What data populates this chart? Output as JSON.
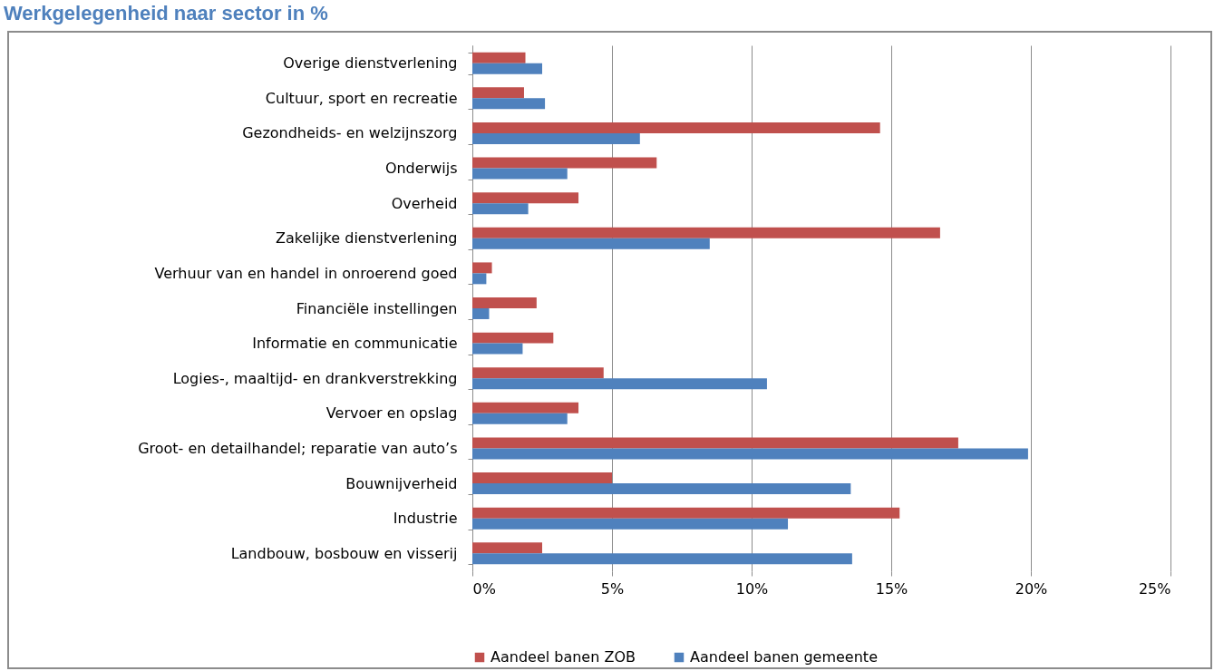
{
  "chart_data": {
    "type": "bar",
    "orientation": "horizontal",
    "title": "Werkgelegenheid naar sector in %",
    "categories": [
      "Overige dienstverlening",
      "Cultuur, sport en recreatie",
      "Gezondheids- en welzijnszorg",
      "Onderwijs",
      "Overheid",
      "Zakelijke dienstverlening",
      "Verhuur van en handel in onroerend goed",
      "Financiële instellingen",
      "Informatie en communicatie",
      "Logies-, maaltijd- en drankverstrekking",
      "Vervoer en opslag",
      "Groot- en detailhandel; reparatie van auto’s",
      "Bouwnijverheid",
      "Industrie",
      "Landbouw, bosbouw en visserij"
    ],
    "series": [
      {
        "name": "Aandeel banen ZOB",
        "color": "#c0504d",
        "values": [
          1.9,
          1.85,
          14.6,
          6.6,
          3.8,
          16.75,
          0.7,
          2.3,
          2.9,
          4.7,
          3.8,
          17.4,
          5.0,
          15.3,
          2.5
        ]
      },
      {
        "name": "Aandeel banen gemeente",
        "color": "#4f81bd",
        "values": [
          2.5,
          2.6,
          6.0,
          3.4,
          2.0,
          8.5,
          0.5,
          0.6,
          1.8,
          10.55,
          3.4,
          19.9,
          13.55,
          11.3,
          13.6
        ]
      }
    ],
    "xlim": [
      0,
      25
    ],
    "xticks": [
      {
        "value": 0,
        "label": "0%"
      },
      {
        "value": 5,
        "label": "5%"
      },
      {
        "value": 10,
        "label": "10%"
      },
      {
        "value": 15,
        "label": "15%"
      },
      {
        "value": 20,
        "label": "20%"
      },
      {
        "value": 25,
        "label": "25%"
      }
    ],
    "grid": "x",
    "legend": "bottom"
  }
}
